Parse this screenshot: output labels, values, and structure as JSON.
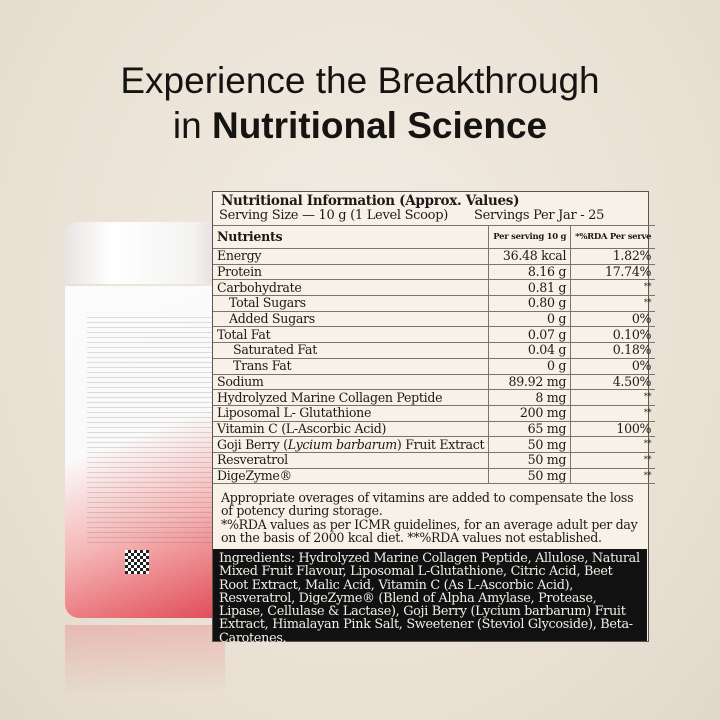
{
  "headline": {
    "line1": "Experience the Breakthrough",
    "line2_prefix": "in ",
    "line2_bold": "Nutritional Science"
  },
  "panel": {
    "title": "Nutritional Information (Approx. Values)",
    "serving_size": "Serving Size — 10 g (1 Level Scoop)",
    "servings_per_jar": "Servings Per Jar - 25",
    "columns": {
      "nutrients": "Nutrients",
      "per_serving": "Per serving 10 g",
      "rda": "*%RDA Per serve"
    },
    "rows": [
      {
        "name": "Energy",
        "value": "36.48 kcal",
        "rda": "1.82%"
      },
      {
        "name": "Protein",
        "value": "8.16 g",
        "rda": "17.74%"
      },
      {
        "name": "Carbohydrate",
        "value": "0.81 g",
        "rda": "**"
      },
      {
        "name": "Total Sugars",
        "value": "0.80 g",
        "rda": "**"
      },
      {
        "name": "Added Sugars",
        "value": "0 g",
        "rda": "0%"
      },
      {
        "name": "Total Fat",
        "value": "0.07 g",
        "rda": "0.10%"
      },
      {
        "name": "Saturated Fat",
        "value": "0.04 g",
        "rda": "0.18%"
      },
      {
        "name": "Trans Fat",
        "value": "0 g",
        "rda": "0%"
      },
      {
        "name": "Sodium",
        "value": "89.92 mg",
        "rda": "4.50%"
      },
      {
        "name": "Hydrolyzed Marine Collagen Peptide",
        "value": "8 mg",
        "rda": "**"
      },
      {
        "name": "Liposomal L- Glutathione",
        "value": "200 mg",
        "rda": "**"
      },
      {
        "name": "Vitamin C (L-Ascorbic Acid)",
        "value": "65 mg",
        "rda": "100%"
      },
      {
        "name_prefix": "Goji Berry (",
        "name_italic": "Lycium barbarum",
        "name_suffix": ") Fruit Extract",
        "value": "50 mg",
        "rda": "**"
      },
      {
        "name": "Resveratrol",
        "value": "50 mg",
        "rda": "**"
      },
      {
        "name": "DigeZyme®",
        "value": "50 mg",
        "rda": "**"
      }
    ],
    "note1": "Appropriate overages of vitamins are added to compensate the loss of potency during storage.",
    "note2": "*%RDA values as per ICMR guidelines, for an average adult per day on the basis of 2000 kcal diet. **%RDA values not established.",
    "ingredients": "Ingredients: Hydrolyzed Marine Collagen Peptide, Allulose, Natural Mixed Fruit Flavour, Liposomal L-Glutathione, Citric Acid, Beet Root Extract, Malic Acid, Vitamin C (As L-Ascorbic Acid), Resveratrol, DigeZyme® (Blend of Alpha Amylase, Protease, Lipase, Cellulase & Lactase), Goji Berry (Lycium barbarum) Fruit Extract, Himalayan Pink Salt, Sweetener (Steviol Glycoside), Beta-Carotenes."
  },
  "colors": {
    "background": "#ece4d8",
    "panel": "#f8f1e7",
    "ingredients_bg": "#111111",
    "jar_accent": "#e04a55"
  }
}
